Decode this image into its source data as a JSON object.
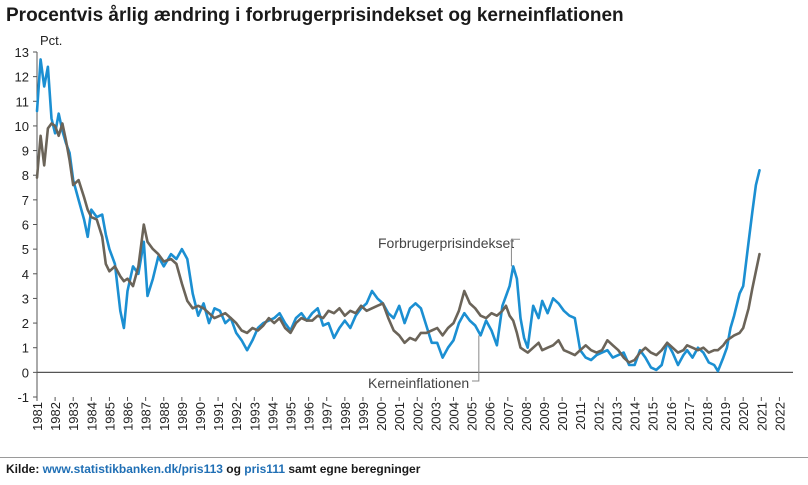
{
  "title": "Procentvis årlig ændring i forbrugerprisindekset og kerneinflationen",
  "source": {
    "prefix": "Kilde: ",
    "link1": "www.statistikbanken.dk/pris113",
    "mid": " og ",
    "link2": "pris111",
    "suffix": " samt egne beregninger"
  },
  "chart_data": {
    "type": "line",
    "ylabel": "Pct.",
    "xlabel": "",
    "ylim": [
      -1,
      13
    ],
    "xlim": [
      1981,
      2022.75
    ],
    "y_ticks": [
      -1,
      0,
      1,
      2,
      3,
      4,
      5,
      6,
      7,
      8,
      9,
      10,
      11,
      12,
      13
    ],
    "x_ticks": [
      "1981",
      "1982",
      "1983",
      "1984",
      "1985",
      "1986",
      "1987",
      "1988",
      "1989",
      "1990",
      "1991",
      "1992",
      "1993",
      "1994",
      "1995",
      "1996",
      "1997",
      "1998",
      "1999",
      "2000",
      "2001",
      "2002",
      "2003",
      "2004",
      "2005",
      "2006",
      "2007",
      "2008",
      "2009",
      "2010",
      "2011",
      "2012",
      "2013",
      "2014",
      "2015",
      "2016",
      "2017",
      "2018",
      "2019",
      "2020",
      "2021",
      "2022"
    ],
    "grid": false,
    "zero_line": true,
    "series": [
      {
        "name": "Forbrugerprisindekset",
        "color": "#1b8fd2",
        "points": [
          [
            1981.0,
            10.6
          ],
          [
            1981.2,
            12.7
          ],
          [
            1981.4,
            11.6
          ],
          [
            1981.6,
            12.4
          ],
          [
            1981.8,
            10.3
          ],
          [
            1982.0,
            9.7
          ],
          [
            1982.2,
            10.5
          ],
          [
            1982.4,
            9.8
          ],
          [
            1982.6,
            9.3
          ],
          [
            1982.8,
            8.9
          ],
          [
            1983.0,
            7.8
          ],
          [
            1983.3,
            7.0
          ],
          [
            1983.6,
            6.2
          ],
          [
            1983.8,
            5.5
          ],
          [
            1984.0,
            6.6
          ],
          [
            1984.3,
            6.3
          ],
          [
            1984.6,
            6.4
          ],
          [
            1984.8,
            5.6
          ],
          [
            1985.0,
            5.0
          ],
          [
            1985.3,
            4.4
          ],
          [
            1985.6,
            2.5
          ],
          [
            1985.8,
            1.8
          ],
          [
            1986.0,
            3.3
          ],
          [
            1986.3,
            4.3
          ],
          [
            1986.6,
            4.0
          ],
          [
            1986.9,
            5.3
          ],
          [
            1987.1,
            3.1
          ],
          [
            1987.4,
            3.8
          ],
          [
            1987.7,
            4.7
          ],
          [
            1988.0,
            4.3
          ],
          [
            1988.4,
            4.8
          ],
          [
            1988.7,
            4.6
          ],
          [
            1989.0,
            5.0
          ],
          [
            1989.3,
            4.6
          ],
          [
            1989.6,
            3.2
          ],
          [
            1989.9,
            2.3
          ],
          [
            1990.2,
            2.8
          ],
          [
            1990.5,
            2.0
          ],
          [
            1990.8,
            2.6
          ],
          [
            1991.1,
            2.5
          ],
          [
            1991.4,
            2.0
          ],
          [
            1991.7,
            2.2
          ],
          [
            1992.0,
            1.6
          ],
          [
            1992.3,
            1.3
          ],
          [
            1992.6,
            0.9
          ],
          [
            1992.9,
            1.3
          ],
          [
            1993.2,
            1.8
          ],
          [
            1993.5,
            2.0
          ],
          [
            1993.8,
            2.1
          ],
          [
            1994.1,
            2.2
          ],
          [
            1994.4,
            2.4
          ],
          [
            1994.7,
            2.0
          ],
          [
            1995.0,
            1.7
          ],
          [
            1995.3,
            2.2
          ],
          [
            1995.6,
            2.4
          ],
          [
            1995.9,
            2.1
          ],
          [
            1996.2,
            2.4
          ],
          [
            1996.5,
            2.6
          ],
          [
            1996.8,
            1.9
          ],
          [
            1997.1,
            2.0
          ],
          [
            1997.4,
            1.4
          ],
          [
            1997.7,
            1.8
          ],
          [
            1998.0,
            2.1
          ],
          [
            1998.3,
            1.8
          ],
          [
            1998.6,
            2.3
          ],
          [
            1998.9,
            2.6
          ],
          [
            1999.2,
            2.8
          ],
          [
            1999.5,
            3.3
          ],
          [
            1999.8,
            3.0
          ],
          [
            2000.1,
            2.8
          ],
          [
            2000.4,
            2.4
          ],
          [
            2000.7,
            2.2
          ],
          [
            2001.0,
            2.7
          ],
          [
            2001.3,
            2.0
          ],
          [
            2001.6,
            2.6
          ],
          [
            2001.9,
            2.8
          ],
          [
            2002.2,
            2.6
          ],
          [
            2002.5,
            1.9
          ],
          [
            2002.8,
            1.2
          ],
          [
            2003.1,
            1.2
          ],
          [
            2003.4,
            0.6
          ],
          [
            2003.7,
            1.0
          ],
          [
            2004.0,
            1.3
          ],
          [
            2004.3,
            2.0
          ],
          [
            2004.6,
            2.4
          ],
          [
            2004.9,
            2.1
          ],
          [
            2005.2,
            1.9
          ],
          [
            2005.5,
            1.5
          ],
          [
            2005.8,
            2.1
          ],
          [
            2006.1,
            1.7
          ],
          [
            2006.4,
            1.1
          ],
          [
            2006.7,
            2.7
          ],
          [
            2006.9,
            3.1
          ],
          [
            2007.1,
            3.5
          ],
          [
            2007.3,
            4.3
          ],
          [
            2007.5,
            3.8
          ],
          [
            2007.7,
            2.2
          ],
          [
            2007.9,
            1.4
          ],
          [
            2008.1,
            1.0
          ],
          [
            2008.4,
            2.7
          ],
          [
            2008.7,
            2.2
          ],
          [
            2008.9,
            2.9
          ],
          [
            2009.2,
            2.4
          ],
          [
            2009.5,
            3.0
          ],
          [
            2009.8,
            2.8
          ],
          [
            2010.1,
            2.5
          ],
          [
            2010.4,
            2.3
          ],
          [
            2010.7,
            2.2
          ],
          [
            2011.0,
            0.9
          ],
          [
            2011.3,
            0.6
          ],
          [
            2011.6,
            0.5
          ],
          [
            2011.9,
            0.7
          ],
          [
            2012.2,
            0.8
          ],
          [
            2012.5,
            0.9
          ],
          [
            2012.8,
            0.6
          ],
          [
            2013.1,
            0.7
          ],
          [
            2013.4,
            0.8
          ],
          [
            2013.7,
            0.3
          ],
          [
            2014.0,
            0.3
          ],
          [
            2014.3,
            0.9
          ],
          [
            2014.6,
            0.6
          ],
          [
            2014.9,
            0.2
          ],
          [
            2015.2,
            0.1
          ],
          [
            2015.5,
            0.3
          ],
          [
            2015.8,
            1.2
          ],
          [
            2016.1,
            0.8
          ],
          [
            2016.4,
            0.3
          ],
          [
            2016.7,
            0.7
          ],
          [
            2016.9,
            0.9
          ],
          [
            2017.2,
            0.6
          ],
          [
            2017.5,
            1.0
          ],
          [
            2017.8,
            0.8
          ],
          [
            2018.1,
            0.4
          ],
          [
            2018.4,
            0.3
          ],
          [
            2018.6,
            0.05
          ],
          [
            2018.9,
            0.6
          ],
          [
            2019.1,
            1.0
          ],
          [
            2019.3,
            1.8
          ],
          [
            2019.5,
            2.3
          ],
          [
            2019.8,
            3.2
          ],
          [
            2020.0,
            3.5
          ],
          [
            2020.3,
            5.3
          ],
          [
            2020.5,
            6.5
          ],
          [
            2020.7,
            7.6
          ],
          [
            2020.9,
            8.2
          ]
        ]
      },
      {
        "name": "Kerneinflationen",
        "color": "#6b6459",
        "points": [
          [
            1981.0,
            7.9
          ],
          [
            1981.2,
            9.6
          ],
          [
            1981.4,
            8.4
          ],
          [
            1981.6,
            9.9
          ],
          [
            1981.8,
            10.1
          ],
          [
            1982.0,
            10.0
          ],
          [
            1982.2,
            9.6
          ],
          [
            1982.4,
            10.1
          ],
          [
            1982.6,
            9.4
          ],
          [
            1982.8,
            8.6
          ],
          [
            1983.0,
            7.6
          ],
          [
            1983.3,
            7.8
          ],
          [
            1983.6,
            7.1
          ],
          [
            1983.8,
            6.6
          ],
          [
            1984.0,
            6.3
          ],
          [
            1984.3,
            6.2
          ],
          [
            1984.6,
            5.5
          ],
          [
            1984.8,
            4.4
          ],
          [
            1985.0,
            4.1
          ],
          [
            1985.3,
            4.3
          ],
          [
            1985.6,
            3.9
          ],
          [
            1985.8,
            3.7
          ],
          [
            1986.0,
            3.8
          ],
          [
            1986.3,
            3.5
          ],
          [
            1986.6,
            4.3
          ],
          [
            1986.9,
            6.0
          ],
          [
            1987.1,
            5.3
          ],
          [
            1987.4,
            5.0
          ],
          [
            1987.7,
            4.8
          ],
          [
            1988.0,
            4.5
          ],
          [
            1988.4,
            4.6
          ],
          [
            1988.7,
            4.4
          ],
          [
            1989.0,
            3.6
          ],
          [
            1989.3,
            2.9
          ],
          [
            1989.6,
            2.6
          ],
          [
            1989.9,
            2.7
          ],
          [
            1990.2,
            2.6
          ],
          [
            1990.5,
            2.4
          ],
          [
            1990.8,
            2.2
          ],
          [
            1991.1,
            2.3
          ],
          [
            1991.4,
            2.4
          ],
          [
            1991.7,
            2.2
          ],
          [
            1992.0,
            2.0
          ],
          [
            1992.3,
            1.7
          ],
          [
            1992.6,
            1.6
          ],
          [
            1992.9,
            1.8
          ],
          [
            1993.2,
            1.7
          ],
          [
            1993.5,
            1.9
          ],
          [
            1993.8,
            2.2
          ],
          [
            1994.1,
            2.0
          ],
          [
            1994.4,
            2.2
          ],
          [
            1994.7,
            1.8
          ],
          [
            1995.0,
            1.6
          ],
          [
            1995.3,
            2.0
          ],
          [
            1995.6,
            2.2
          ],
          [
            1995.9,
            2.1
          ],
          [
            1996.2,
            2.1
          ],
          [
            1996.5,
            2.3
          ],
          [
            1996.8,
            2.2
          ],
          [
            1997.1,
            2.5
          ],
          [
            1997.4,
            2.4
          ],
          [
            1997.7,
            2.6
          ],
          [
            1998.0,
            2.3
          ],
          [
            1998.3,
            2.5
          ],
          [
            1998.6,
            2.4
          ],
          [
            1998.9,
            2.7
          ],
          [
            1999.2,
            2.5
          ],
          [
            1999.5,
            2.6
          ],
          [
            1999.8,
            2.7
          ],
          [
            2000.1,
            2.8
          ],
          [
            2000.4,
            2.2
          ],
          [
            2000.7,
            1.7
          ],
          [
            2001.0,
            1.5
          ],
          [
            2001.3,
            1.2
          ],
          [
            2001.6,
            1.4
          ],
          [
            2001.9,
            1.3
          ],
          [
            2002.2,
            1.6
          ],
          [
            2002.5,
            1.6
          ],
          [
            2002.8,
            1.7
          ],
          [
            2003.1,
            1.8
          ],
          [
            2003.4,
            1.5
          ],
          [
            2003.7,
            1.8
          ],
          [
            2004.0,
            2.0
          ],
          [
            2004.3,
            2.5
          ],
          [
            2004.6,
            3.3
          ],
          [
            2004.9,
            2.8
          ],
          [
            2005.2,
            2.6
          ],
          [
            2005.5,
            2.3
          ],
          [
            2005.8,
            2.2
          ],
          [
            2006.1,
            2.4
          ],
          [
            2006.4,
            2.3
          ],
          [
            2006.7,
            2.5
          ],
          [
            2006.9,
            2.7
          ],
          [
            2007.1,
            2.3
          ],
          [
            2007.3,
            2.1
          ],
          [
            2007.5,
            1.6
          ],
          [
            2007.7,
            1.0
          ],
          [
            2007.9,
            0.9
          ],
          [
            2008.1,
            0.8
          ],
          [
            2008.4,
            1.0
          ],
          [
            2008.7,
            1.2
          ],
          [
            2008.9,
            0.9
          ],
          [
            2009.2,
            1.0
          ],
          [
            2009.5,
            1.1
          ],
          [
            2009.8,
            1.3
          ],
          [
            2010.1,
            0.9
          ],
          [
            2010.4,
            0.8
          ],
          [
            2010.7,
            0.7
          ],
          [
            2011.0,
            0.9
          ],
          [
            2011.3,
            1.1
          ],
          [
            2011.6,
            0.9
          ],
          [
            2011.9,
            0.8
          ],
          [
            2012.2,
            0.9
          ],
          [
            2012.5,
            1.3
          ],
          [
            2012.8,
            1.1
          ],
          [
            2013.1,
            0.9
          ],
          [
            2013.4,
            0.6
          ],
          [
            2013.7,
            0.4
          ],
          [
            2014.0,
            0.5
          ],
          [
            2014.3,
            0.8
          ],
          [
            2014.6,
            1.0
          ],
          [
            2014.9,
            0.8
          ],
          [
            2015.2,
            0.7
          ],
          [
            2015.5,
            0.9
          ],
          [
            2015.8,
            1.2
          ],
          [
            2016.1,
            1.0
          ],
          [
            2016.4,
            0.8
          ],
          [
            2016.7,
            0.9
          ],
          [
            2016.9,
            1.1
          ],
          [
            2017.2,
            1.0
          ],
          [
            2017.5,
            0.9
          ],
          [
            2017.8,
            1.0
          ],
          [
            2018.1,
            0.8
          ],
          [
            2018.4,
            0.9
          ],
          [
            2018.6,
            0.9
          ],
          [
            2018.9,
            1.1
          ],
          [
            2019.1,
            1.3
          ],
          [
            2019.3,
            1.4
          ],
          [
            2019.5,
            1.5
          ],
          [
            2019.8,
            1.6
          ],
          [
            2020.0,
            1.8
          ],
          [
            2020.3,
            2.6
          ],
          [
            2020.5,
            3.4
          ],
          [
            2020.7,
            4.1
          ],
          [
            2020.9,
            4.8
          ]
        ],
        "sample_note": ""
      }
    ],
    "annotations": [
      {
        "text": "Forbrugerprisindekset",
        "series": "Forbrugerprisindekset"
      },
      {
        "text": "Kerneinflationen",
        "series": "Kerneinflationen"
      }
    ]
  }
}
